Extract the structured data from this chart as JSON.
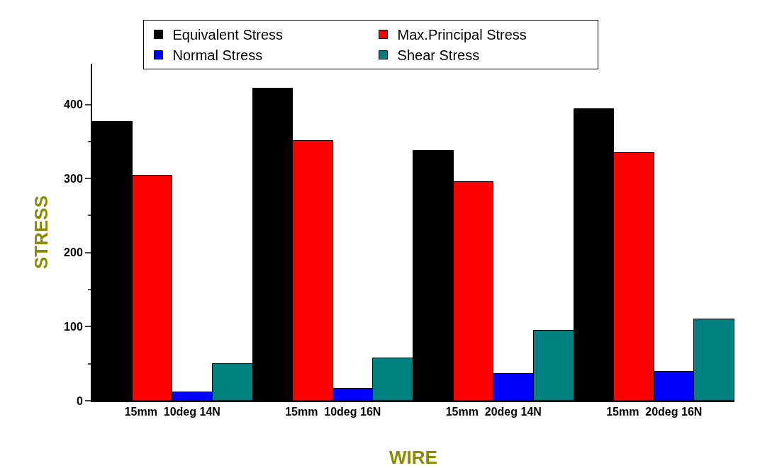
{
  "chart_data": {
    "type": "bar",
    "xlabel": "WIRE",
    "ylabel": "STRESS",
    "categories": [
      "15mm  10deg 14N",
      "15mm  10deg 16N",
      "15mm  20deg 14N",
      "15mm  20deg 16N"
    ],
    "series": [
      {
        "name": "Equivalent Stress",
        "color": "#000000",
        "values": [
          377,
          422,
          337,
          394
        ]
      },
      {
        "name": "Max.Principal Stress",
        "color": "#ff0000",
        "values": [
          304,
          351,
          295,
          335
        ]
      },
      {
        "name": "Normal Stress",
        "color": "#0000ff",
        "values": [
          11,
          16,
          36,
          39
        ]
      },
      {
        "name": "Shear Stress",
        "color": "#008080",
        "values": [
          50,
          57,
          95,
          110
        ]
      }
    ],
    "ylim": [
      0,
      455
    ],
    "yticks": [
      0,
      100,
      200,
      300,
      400
    ],
    "grid": false,
    "legend": "top"
  }
}
